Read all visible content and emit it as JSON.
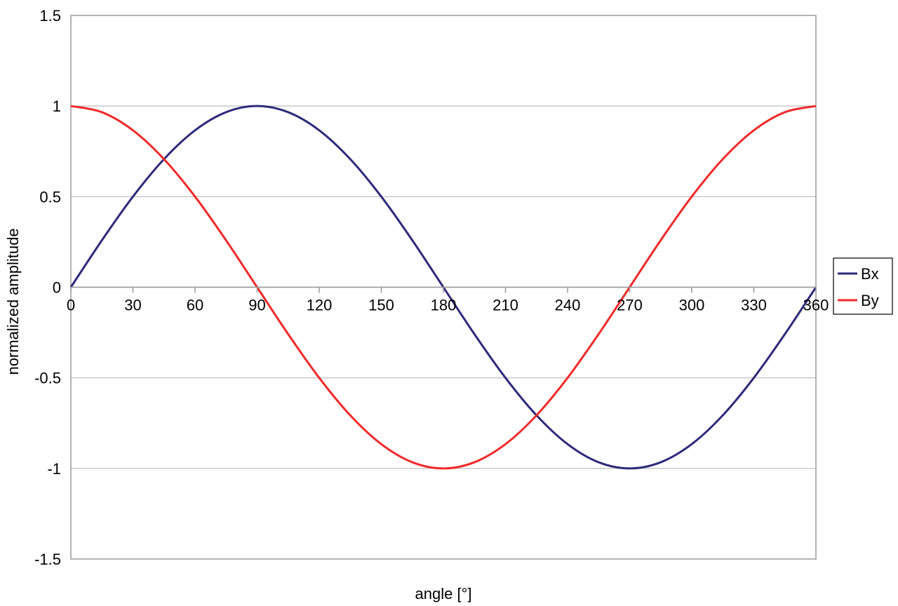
{
  "chart_data": {
    "type": "line",
    "title": "",
    "xlabel": "angle [°]",
    "ylabel": "normalized amplitude",
    "xlim": [
      0,
      360
    ],
    "ylim": [
      -1.5,
      1.5
    ],
    "x_ticks": [
      0,
      30,
      60,
      90,
      120,
      150,
      180,
      210,
      240,
      270,
      300,
      330,
      360
    ],
    "x_tick_labels": [
      "0",
      "30",
      "60",
      "90",
      "120",
      "150",
      "180",
      "210",
      "240",
      "270",
      "300",
      "330",
      "360"
    ],
    "y_ticks": [
      1.5,
      1,
      0.5,
      0,
      -0.5,
      -1,
      -1.5
    ],
    "y_tick_labels": [
      "1.5",
      "1",
      "0.5",
      "0",
      "-0.5",
      "-1",
      "-1.5"
    ],
    "grid": "horizontal",
    "legend_position": "right",
    "x": [
      0,
      15,
      30,
      45,
      60,
      75,
      90,
      105,
      120,
      135,
      150,
      165,
      180,
      195,
      210,
      225,
      240,
      255,
      270,
      285,
      300,
      315,
      330,
      345,
      360
    ],
    "series": [
      {
        "name": "Bx",
        "color": "#2e2a7a",
        "values": [
          0,
          0.259,
          0.5,
          0.707,
          0.866,
          0.966,
          1,
          0.966,
          0.866,
          0.707,
          0.5,
          0.259,
          0,
          -0.259,
          -0.5,
          -0.707,
          -0.866,
          -0.966,
          -1,
          -0.966,
          -0.866,
          -0.707,
          -0.5,
          -0.259,
          0
        ]
      },
      {
        "name": "By",
        "color": "#f02a2a",
        "values": [
          1,
          0.966,
          0.866,
          0.707,
          0.5,
          0.259,
          0,
          -0.259,
          -0.5,
          -0.707,
          -0.866,
          -0.966,
          -1,
          -0.966,
          -0.866,
          -0.707,
          -0.5,
          -0.259,
          0,
          0.259,
          0.5,
          0.707,
          0.866,
          0.966,
          1
        ]
      }
    ]
  }
}
